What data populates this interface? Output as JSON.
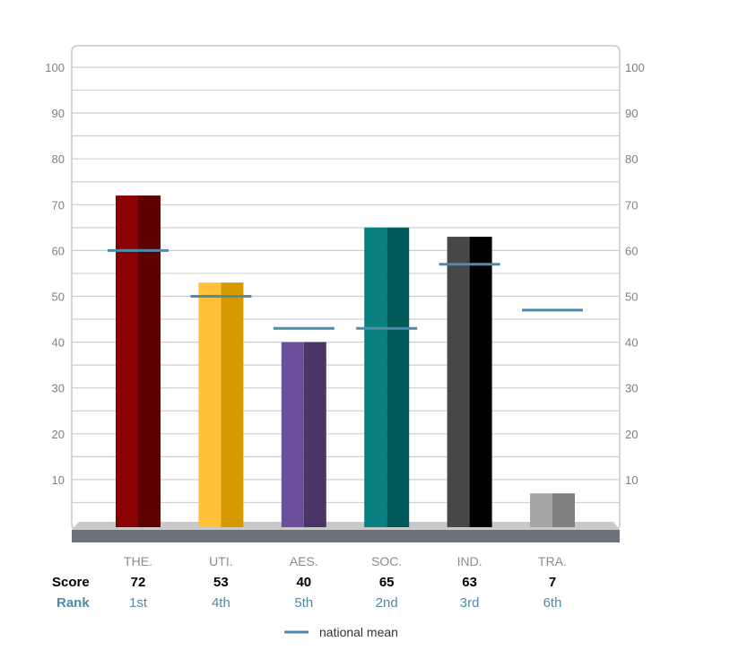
{
  "chart_data": {
    "type": "bar",
    "ylim": [
      0,
      100
    ],
    "y_ticks": [
      10,
      20,
      30,
      40,
      50,
      60,
      70,
      80,
      90,
      100
    ],
    "grid": true,
    "categories": [
      "THE.",
      "UTI.",
      "AES.",
      "SOC.",
      "IND.",
      "TRA."
    ],
    "values": [
      72,
      53,
      40,
      65,
      63,
      7
    ],
    "national_mean": [
      60,
      50,
      43,
      43,
      57,
      47
    ],
    "ranks": [
      "1st",
      "4th",
      "5th",
      "2nd",
      "3rd",
      "6th"
    ],
    "colors": [
      {
        "light": "#8b0000",
        "dark": "#5e0000"
      },
      {
        "light": "#ffc13a",
        "dark": "#d49a00"
      },
      {
        "light": "#6b4f9a",
        "dark": "#4b3566"
      },
      {
        "light": "#0a7f7f",
        "dark": "#005a5a"
      },
      {
        "light": "#474747",
        "dark": "#000000"
      },
      {
        "light": "#a6a6a6",
        "dark": "#7f7f7f"
      }
    ],
    "mean_color": "#4f8aa8",
    "row_labels": {
      "score": "Score",
      "rank": "Rank"
    },
    "legend": {
      "label": "national mean",
      "placement": "bottom-center"
    }
  }
}
